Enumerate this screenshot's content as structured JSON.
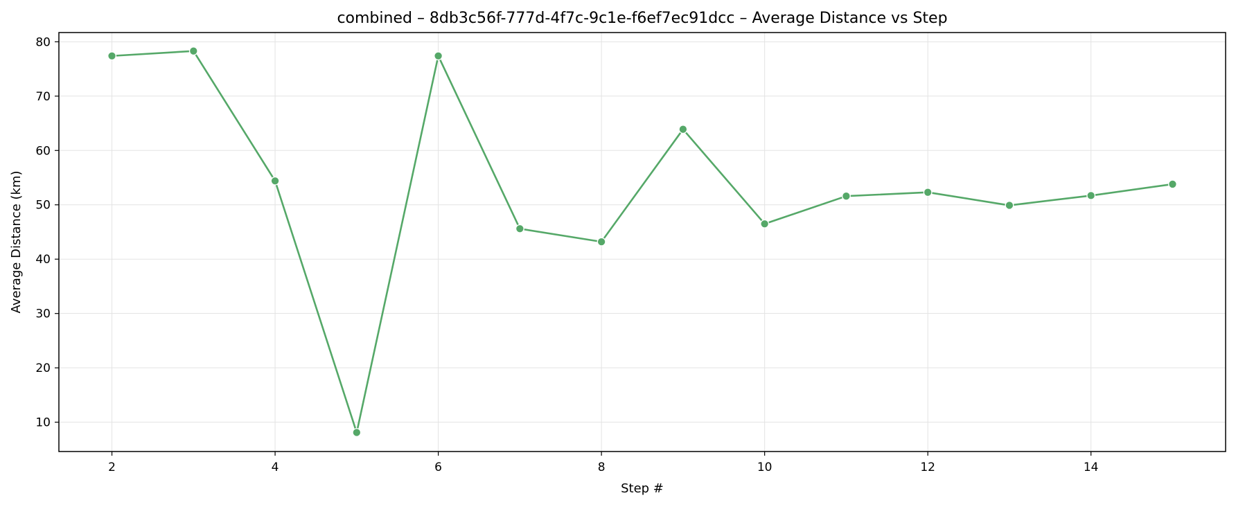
{
  "chart_data": {
    "type": "line",
    "title": "combined – 8db3c56f-777d-4f7c-9c1e-f6ef7ec91dcc – Average Distance vs Step",
    "xlabel": "Step #",
    "ylabel": "Average Distance (km)",
    "xlim": [
      1.35,
      15.65
    ],
    "ylim": [
      4.6,
      81.7
    ],
    "xticks": [
      2,
      4,
      6,
      8,
      10,
      12,
      14
    ],
    "yticks": [
      10,
      20,
      30,
      40,
      50,
      60,
      70,
      80
    ],
    "grid": true,
    "legend": "none",
    "series": [
      {
        "color": "#55a868",
        "x": [
          2,
          3,
          4,
          5,
          6,
          7,
          8,
          9,
          10,
          11,
          12,
          13,
          14,
          15
        ],
        "values": [
          77.4,
          78.3,
          54.4,
          8.1,
          77.4,
          45.6,
          43.2,
          63.9,
          46.5,
          51.6,
          52.3,
          49.9,
          51.7,
          53.8
        ]
      }
    ]
  }
}
